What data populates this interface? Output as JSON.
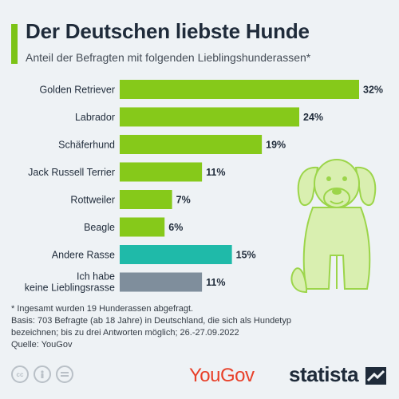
{
  "header": {
    "title": "Der Deutschen liebste Hunde",
    "subtitle": "Anteil der Befragten mit folgenden Lieblingshunderassen*"
  },
  "colors": {
    "accent": "#7cc316",
    "breed_bar": "#86c91a",
    "other_bar": "#1fbaa9",
    "none_bar": "#7f8e9c",
    "title": "#1f2b3a",
    "yougov": "#e8412a"
  },
  "chart_data": {
    "type": "bar",
    "orientation": "horizontal",
    "unit": "%",
    "categories": [
      "Golden Retriever",
      "Labrador",
      "Schäferhund",
      "Jack Russell Terrier",
      "Rottweiler",
      "Beagle",
      "Andere Rasse",
      "Ich habe keine Lieblingsrasse"
    ],
    "values": [
      32,
      24,
      19,
      11,
      7,
      6,
      15,
      11
    ],
    "value_labels": [
      "32%",
      "24%",
      "19%",
      "11%",
      "7%",
      "6%",
      "15%",
      "11%"
    ],
    "bar_colors": [
      "#86c91a",
      "#86c91a",
      "#86c91a",
      "#86c91a",
      "#86c91a",
      "#86c91a",
      "#1fbaa9",
      "#7f8e9c"
    ],
    "xlim": [
      0,
      32
    ],
    "grid": false,
    "legend": "none"
  },
  "footer": {
    "note": "* Ingesamt wurden 19 Hunderassen abgefragt.",
    "basis_line1": "Basis: 703 Befragte (ab 18 Jahre) in Deutschland, die sich als Hundetyp",
    "basis_line2": "bezeichnen; bis zu drei Antworten möglich; 26.-27.09.2022",
    "source": "Quelle: YouGov",
    "cc_icons": [
      "cc-icon",
      "person-icon",
      "equals-icon"
    ],
    "yougov_logo": "YouGov",
    "statista_logo": "statista"
  }
}
